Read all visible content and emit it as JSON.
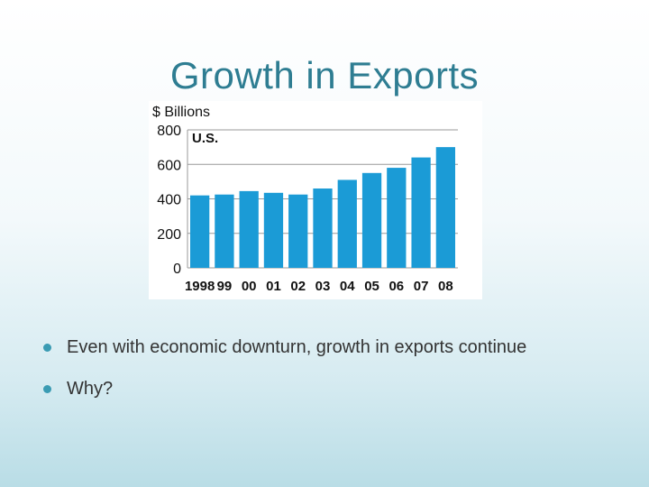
{
  "slide": {
    "title": "Growth in Exports",
    "bullets": [
      {
        "text": "Even with economic downturn, growth in exports continue"
      },
      {
        "text": "Why?"
      }
    ]
  },
  "colors": {
    "title": "#2e7d92",
    "bar": "#1b9bd6",
    "bullet": "#3a9bb3",
    "text": "#333333"
  },
  "chart_data": {
    "type": "bar",
    "ylabel": "$ Billions",
    "series_label": "U.S.",
    "categories": [
      "1998",
      "99",
      "00",
      "01",
      "02",
      "03",
      "04",
      "05",
      "06",
      "07",
      "08"
    ],
    "values": [
      420,
      425,
      445,
      435,
      425,
      460,
      510,
      550,
      580,
      640,
      700
    ],
    "ylim": [
      0,
      800
    ],
    "yticks": [
      0,
      200,
      400,
      600,
      800
    ],
    "grid": true
  }
}
